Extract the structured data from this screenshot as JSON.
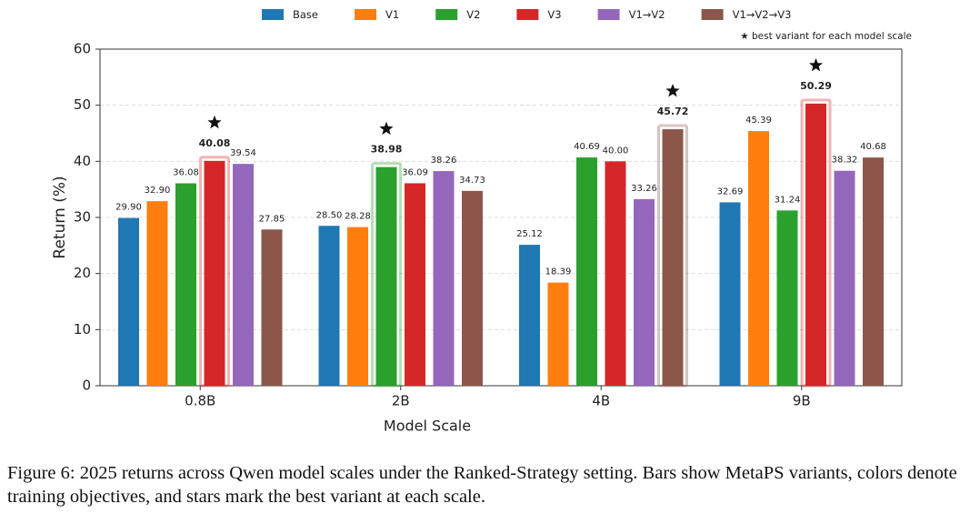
{
  "chart_data": {
    "type": "bar",
    "xlabel": "Model Scale",
    "ylabel": "Return (%)",
    "legend_note": "★ best variant for each model scale",
    "categories": [
      "0.8B",
      "2B",
      "4B",
      "9B"
    ],
    "series": [
      {
        "name": "Base",
        "color": "#1f77b4",
        "values": [
          29.9,
          28.5,
          25.12,
          32.69
        ],
        "value_labels": [
          "29.90",
          "28.50",
          "25.12",
          "32.69"
        ]
      },
      {
        "name": "V1",
        "color": "#ff7f0e",
        "values": [
          32.9,
          28.28,
          18.39,
          45.39
        ],
        "value_labels": [
          "32.90",
          "28.28",
          "18.39",
          "45.39"
        ]
      },
      {
        "name": "V2",
        "color": "#2ca02c",
        "values": [
          36.08,
          38.98,
          40.69,
          31.24
        ],
        "value_labels": [
          "36.08",
          "38.98",
          "40.69",
          "31.24"
        ]
      },
      {
        "name": "V3",
        "color": "#d62728",
        "values": [
          40.08,
          36.09,
          40.0,
          50.29
        ],
        "value_labels": [
          "40.08",
          "36.09",
          "40.00",
          "50.29"
        ]
      },
      {
        "name": "V1→V2",
        "color": "#9467bd",
        "values": [
          39.54,
          38.26,
          33.26,
          38.32
        ],
        "value_labels": [
          "39.54",
          "38.26",
          "33.26",
          "38.32"
        ]
      },
      {
        "name": "V1→V2→V3",
        "color": "#8c564b",
        "values": [
          27.85,
          34.73,
          45.72,
          40.68
        ],
        "value_labels": [
          "27.85",
          "34.73",
          "45.72",
          "40.68"
        ]
      }
    ],
    "ylim": [
      0,
      60
    ],
    "yticks": [
      0,
      10,
      20,
      30,
      40,
      50,
      60
    ],
    "grid": true,
    "legend": "top"
  },
  "caption": "Figure 6: 2025 returns across Qwen model scales under the Ranked-Strategy setting. Bars show MetaPS variants, colors denote training objectives, and stars mark the best variant at each scale."
}
